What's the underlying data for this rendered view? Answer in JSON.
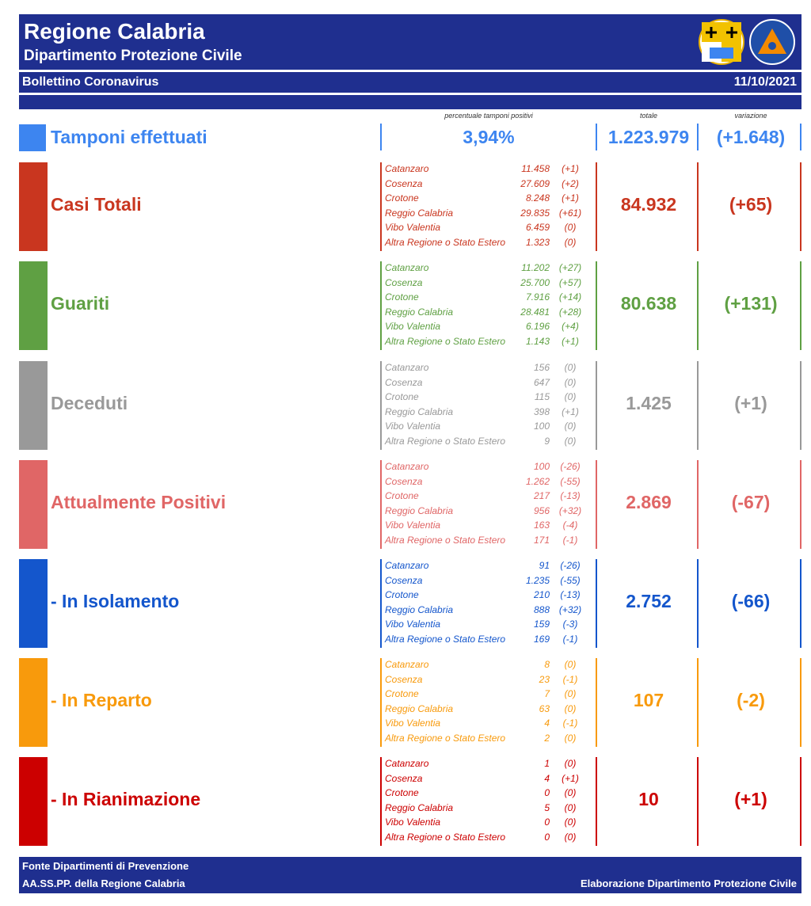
{
  "header": {
    "title": "Regione Calabria",
    "subtitle": "Dipartimento Protezione Civile",
    "bulletin": "Bollettino Coronavirus",
    "date": "11/10/2021"
  },
  "columns": {
    "pct_label": "percentuale tamponi positivi",
    "total_label": "totale",
    "var_label": "variazione"
  },
  "tamponi": {
    "label": "Tamponi effettuati",
    "pct": "3,94%",
    "total": "1.223.979",
    "var": "(+1.648)",
    "color": "#3d85f0"
  },
  "sections": [
    {
      "label": "Casi Totali",
      "color": "#c9361f",
      "total": "84.932",
      "var": "(+65)",
      "rows": [
        {
          "name": "Catanzaro",
          "value": "11.458",
          "delta": "(+1)"
        },
        {
          "name": "Cosenza",
          "value": "27.609",
          "delta": "(+2)"
        },
        {
          "name": "Crotone",
          "value": "8.248",
          "delta": "(+1)"
        },
        {
          "name": "Reggio Calabria",
          "value": "29.835",
          "delta": "(+61)"
        },
        {
          "name": "Vibo Valentia",
          "value": "6.459",
          "delta": "(0)"
        },
        {
          "name": "Altra Regione o Stato Estero",
          "value": "1.323",
          "delta": "(0)"
        }
      ]
    },
    {
      "label": "Guariti",
      "color": "#5fa043",
      "total": "80.638",
      "var": "(+131)",
      "rows": [
        {
          "name": "Catanzaro",
          "value": "11.202",
          "delta": "(+27)"
        },
        {
          "name": "Cosenza",
          "value": "25.700",
          "delta": "(+57)"
        },
        {
          "name": "Crotone",
          "value": "7.916",
          "delta": "(+14)"
        },
        {
          "name": "Reggio Calabria",
          "value": "28.481",
          "delta": "(+28)"
        },
        {
          "name": "Vibo Valentia",
          "value": "6.196",
          "delta": "(+4)"
        },
        {
          "name": "Altra Regione o Stato Estero",
          "value": "1.143",
          "delta": "(+1)"
        }
      ]
    },
    {
      "label": "Deceduti",
      "color": "#999999",
      "total": "1.425",
      "var": "(+1)",
      "rows": [
        {
          "name": "Catanzaro",
          "value": "156",
          "delta": "(0)"
        },
        {
          "name": "Cosenza",
          "value": "647",
          "delta": "(0)"
        },
        {
          "name": "Crotone",
          "value": "115",
          "delta": "(0)"
        },
        {
          "name": "Reggio Calabria",
          "value": "398",
          "delta": "(+1)"
        },
        {
          "name": "Vibo Valentia",
          "value": "100",
          "delta": "(0)"
        },
        {
          "name": "Altra Regione o Stato Estero",
          "value": "9",
          "delta": "(0)"
        }
      ]
    },
    {
      "label": "Attualmente Positivi",
      "color": "#e06666",
      "total": "2.869",
      "var": "(-67)",
      "rows": [
        {
          "name": "Catanzaro",
          "value": "100",
          "delta": "(-26)"
        },
        {
          "name": "Cosenza",
          "value": "1.262",
          "delta": "(-55)"
        },
        {
          "name": "Crotone",
          "value": "217",
          "delta": "(-13)"
        },
        {
          "name": "Reggio Calabria",
          "value": "956",
          "delta": "(+32)"
        },
        {
          "name": "Vibo Valentia",
          "value": "163",
          "delta": "(-4)"
        },
        {
          "name": "Altra Regione o Stato Estero",
          "value": "171",
          "delta": "(-1)"
        }
      ]
    },
    {
      "label": " - In Isolamento",
      "color": "#1456cc",
      "total": "2.752",
      "var": "(-66)",
      "rows": [
        {
          "name": "Catanzaro",
          "value": "91",
          "delta": "(-26)"
        },
        {
          "name": "Cosenza",
          "value": "1.235",
          "delta": "(-55)"
        },
        {
          "name": "Crotone",
          "value": "210",
          "delta": "(-13)"
        },
        {
          "name": "Reggio Calabria",
          "value": "888",
          "delta": "(+32)"
        },
        {
          "name": "Vibo Valentia",
          "value": "159",
          "delta": "(-3)"
        },
        {
          "name": "Altra Regione o Stato Estero",
          "value": "169",
          "delta": "(-1)"
        }
      ]
    },
    {
      "label": " - In Reparto",
      "color": "#f89a0c",
      "total": "107",
      "var": "(-2)",
      "rows": [
        {
          "name": "Catanzaro",
          "value": "8",
          "delta": "(0)"
        },
        {
          "name": "Cosenza",
          "value": "23",
          "delta": "(-1)"
        },
        {
          "name": "Crotone",
          "value": "7",
          "delta": "(0)"
        },
        {
          "name": "Reggio Calabria",
          "value": "63",
          "delta": "(0)"
        },
        {
          "name": "Vibo Valentia",
          "value": "4",
          "delta": "(-1)"
        },
        {
          "name": "Altra Regione o Stato Estero",
          "value": "2",
          "delta": "(0)"
        }
      ]
    },
    {
      "label": " - In Rianimazione",
      "color": "#cc0000",
      "total": "10",
      "var": "(+1)",
      "rows": [
        {
          "name": "Catanzaro",
          "value": "1",
          "delta": "(0)"
        },
        {
          "name": "Cosenza",
          "value": "4",
          "delta": "(+1)"
        },
        {
          "name": "Crotone",
          "value": "0",
          "delta": "(0)"
        },
        {
          "name": "Reggio Calabria",
          "value": "5",
          "delta": "(0)"
        },
        {
          "name": "Vibo Valentia",
          "value": "0",
          "delta": "(0)"
        },
        {
          "name": "Altra Regione o Stato Estero",
          "value": "0",
          "delta": "(0)"
        }
      ]
    }
  ],
  "footer": {
    "line1": "Fonte Dipartimenti di Prevenzione",
    "line2": "AA.SS.PP.  della Regione Calabria",
    "credit": "Elaborazione Dipartimento Protezione Civile"
  }
}
